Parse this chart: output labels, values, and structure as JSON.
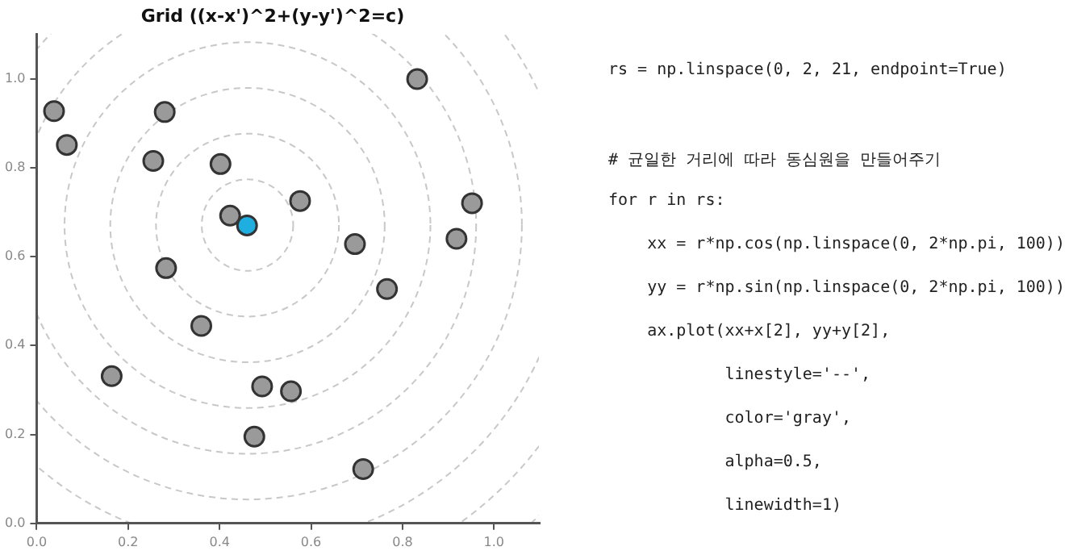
{
  "chart_data": {
    "type": "scatter",
    "title": "Grid ((x-x')^2+(y-y')^2=c)",
    "xlim": [
      0,
      1.1
    ],
    "ylim": [
      0,
      1.1
    ],
    "xticks": [
      {
        "value": 0,
        "label": "0.0"
      },
      {
        "value": 0.2,
        "label": "0.2"
      },
      {
        "value": 0.4,
        "label": "0.4"
      },
      {
        "value": 0.6,
        "label": "0.6"
      },
      {
        "value": 0.8,
        "label": "0.8"
      },
      {
        "value": 1,
        "label": "1.0"
      }
    ],
    "yticks": [
      {
        "value": 0,
        "label": "0.0"
      },
      {
        "value": 0.2,
        "label": "0.2"
      },
      {
        "value": 0.4,
        "label": "0.4"
      },
      {
        "value": 0.6,
        "label": "0.6"
      },
      {
        "value": 0.8,
        "label": "0.8"
      },
      {
        "value": 1,
        "label": "1.0"
      }
    ],
    "grid": false,
    "series": [
      {
        "type": "scatter",
        "color": "#9a9a9a",
        "marker": "circle",
        "x": [
          0.038,
          0.066,
          0.28,
          0.255,
          0.402,
          0.423,
          0.576,
          0.832,
          0.952,
          0.918,
          0.696,
          0.766,
          0.283,
          0.36,
          0.164,
          0.493,
          0.556,
          0.476,
          0.714
        ],
        "values": [
          0.927,
          0.851,
          0.925,
          0.815,
          0.808,
          0.692,
          0.725,
          0.999,
          0.72,
          0.64,
          0.628,
          0.527,
          0.574,
          0.444,
          0.331,
          0.308,
          0.297,
          0.195,
          0.122
        ]
      },
      {
        "type": "scatter",
        "color": "#1eaee0",
        "marker": "circle",
        "x": [
          0.46
        ],
        "values": [
          0.67
        ]
      }
    ],
    "annotations": [
      "rs = np.linspace(0, 2, 21, endpoint=True)",
      "# 균일한 거리에 따라 동심원을 만들어주기",
      "for r in rs:",
      "    xx = r*np.cos(np.linspace(0, 2*np.pi, 100))",
      "    yy = r*np.sin(np.linspace(0, 2*np.pi, 100))",
      "    ax.plot(xx+x[2], yy+y[2],",
      "            linestyle='--',",
      "            color='gray',",
      "            alpha=0.5,",
      "            linewidth=1)"
    ]
  }
}
